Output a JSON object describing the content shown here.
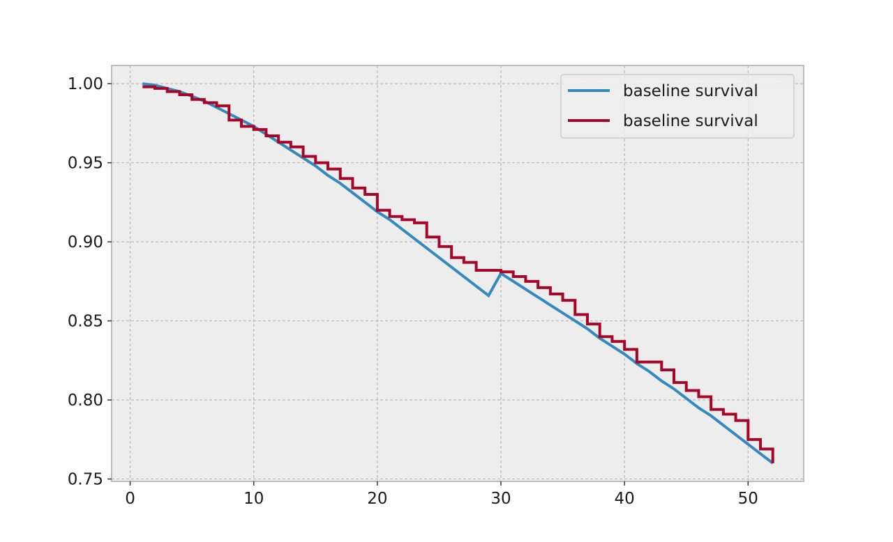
{
  "chart_data": {
    "type": "line",
    "title": "",
    "xlabel": "",
    "ylabel": "",
    "xlim": [
      -1.5,
      54.5
    ],
    "ylim": [
      0.7485,
      1.0115
    ],
    "xticks": [
      0,
      10,
      20,
      30,
      40,
      50
    ],
    "yticks": [
      0.75,
      0.8,
      0.85,
      0.9,
      0.95,
      1.0
    ],
    "xtick_labels": [
      "0",
      "10",
      "20",
      "30",
      "40",
      "50"
    ],
    "ytick_labels": [
      "0.75",
      "0.80",
      "0.85",
      "0.90",
      "0.95",
      "1.00"
    ],
    "grid": true,
    "background": "#ededed",
    "legend": {
      "position": "top-right"
    },
    "series": [
      {
        "name": "baseline survival",
        "kind": "line",
        "color": "#348abd",
        "x": [
          1,
          2,
          3,
          4,
          5,
          6,
          7,
          8,
          9,
          10,
          11,
          12,
          13,
          14,
          15,
          16,
          17,
          18,
          19,
          20,
          21,
          22,
          23,
          24,
          25,
          26,
          27,
          28,
          29,
          30,
          31,
          32,
          33,
          34,
          35,
          36,
          37,
          38,
          39,
          40,
          41,
          42,
          43,
          44,
          45,
          46,
          47,
          48,
          49,
          50,
          51,
          52
        ],
        "y": [
          1.0,
          0.999,
          0.997,
          0.995,
          0.992,
          0.989,
          0.985,
          0.981,
          0.977,
          0.973,
          0.968,
          0.963,
          0.958,
          0.953,
          0.948,
          0.942,
          0.937,
          0.931,
          0.925,
          0.919,
          0.914,
          0.908,
          0.902,
          0.896,
          0.89,
          0.884,
          0.878,
          0.872,
          0.866,
          0.88,
          0.875,
          0.87,
          0.865,
          0.86,
          0.855,
          0.85,
          0.845,
          0.839,
          0.834,
          0.829,
          0.823,
          0.818,
          0.812,
          0.807,
          0.801,
          0.795,
          0.79,
          0.784,
          0.778,
          0.772,
          0.766,
          0.76
        ]
      },
      {
        "name": "baseline survival",
        "kind": "step",
        "color": "#a60628",
        "x": [
          1,
          2,
          3,
          4,
          5,
          6,
          7,
          8,
          9,
          10,
          11,
          12,
          13,
          14,
          15,
          16,
          17,
          18,
          19,
          20,
          21,
          22,
          23,
          24,
          25,
          26,
          27,
          28,
          29,
          30,
          31,
          32,
          33,
          34,
          35,
          36,
          37,
          38,
          39,
          40,
          41,
          42,
          43,
          44,
          45,
          46,
          47,
          48,
          49,
          50,
          51,
          52
        ],
        "y": [
          0.998,
          0.997,
          0.995,
          0.993,
          0.99,
          0.988,
          0.986,
          0.977,
          0.973,
          0.971,
          0.967,
          0.963,
          0.96,
          0.954,
          0.95,
          0.946,
          0.94,
          0.934,
          0.93,
          0.92,
          0.916,
          0.914,
          0.912,
          0.903,
          0.897,
          0.89,
          0.887,
          0.882,
          0.882,
          0.881,
          0.878,
          0.875,
          0.871,
          0.867,
          0.863,
          0.854,
          0.848,
          0.84,
          0.837,
          0.832,
          0.824,
          0.824,
          0.819,
          0.811,
          0.806,
          0.802,
          0.794,
          0.791,
          0.787,
          0.775,
          0.769,
          0.76
        ]
      }
    ]
  }
}
